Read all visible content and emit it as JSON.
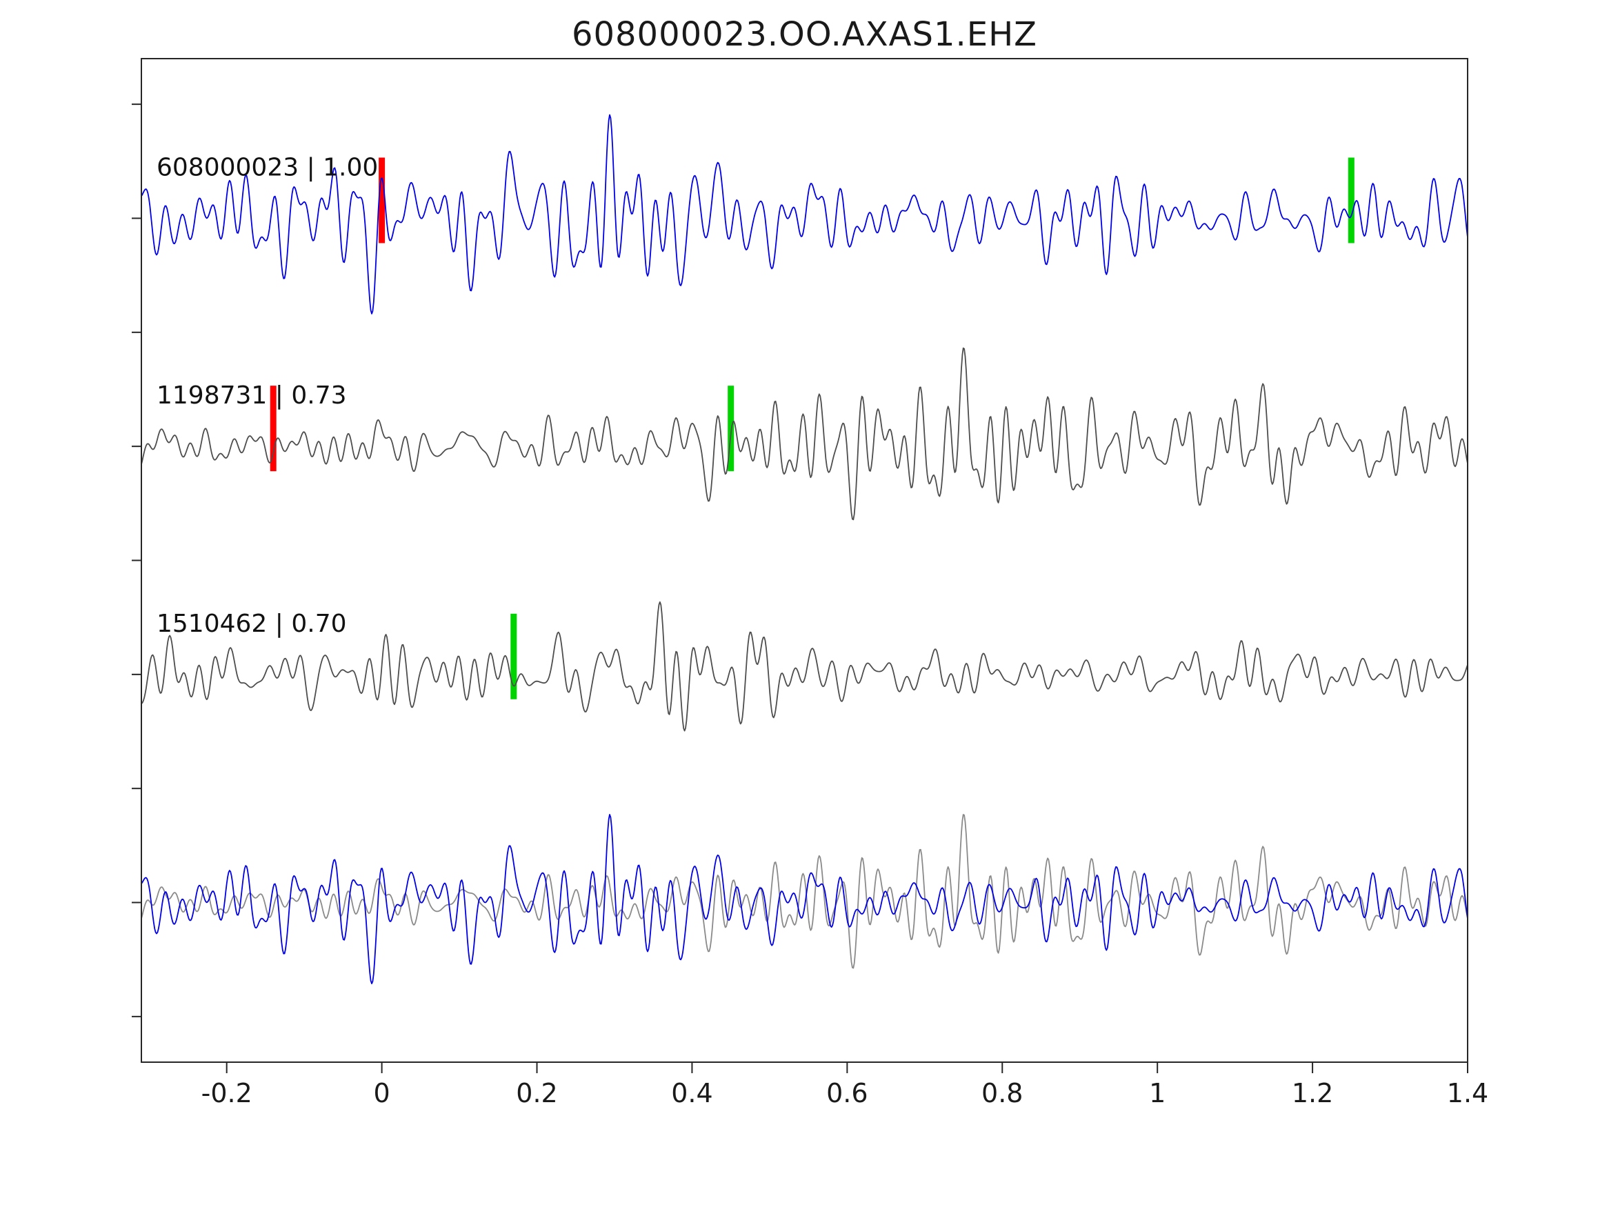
{
  "chart_data": {
    "type": "line",
    "title": "608000023.OO.AXAS1.EHZ",
    "xlabel": "",
    "ylabel": "",
    "xlim": [
      -0.31,
      1.4
    ],
    "x_ticks": [
      "-0.2",
      "0",
      "0.2",
      "0.4",
      "0.6",
      "0.8",
      "1",
      "1.2",
      "1.4"
    ],
    "x_tick_values": [
      -0.2,
      0,
      0.2,
      0.4,
      0.6,
      0.8,
      1.0,
      1.2,
      1.4
    ],
    "grid": false,
    "legend": "none",
    "note": "Seismic template-matching waveform figure: three event traces with correlation scores and pick markers, plus an overlay of template (gray) and detection (blue) at bottom. Waveform sample values are band-limited-noise approximations; exact amplitudes are not recoverable from pixels.",
    "colors": {
      "detection_blue": "#0000e6",
      "trace_gray": "#4d4d4d",
      "overlay_gray": "#8a8a8a",
      "pick_red": "#ff0000",
      "pick_green": "#00d400",
      "spine": "#262626"
    },
    "traces": [
      {
        "id": "608000023",
        "label": "608000023 | 1.00",
        "correlation": "1.00",
        "color": "#0000e6",
        "row": 0,
        "seed": 42,
        "amplitude": 1.0,
        "markers": [
          {
            "x": 0.0,
            "color": "#ff0000",
            "name": "red-pick"
          },
          {
            "x": 1.25,
            "color": "#00d400",
            "name": "green-pick"
          }
        ]
      },
      {
        "id": "1198731",
        "label": "1198731 | 0.73",
        "correlation": "0.73",
        "color": "#4d4d4d",
        "row": 1,
        "seed": 7,
        "amplitude": 0.95,
        "markers": [
          {
            "x": -0.14,
            "color": "#ff0000",
            "name": "red-pick"
          },
          {
            "x": 0.45,
            "color": "#00d400",
            "name": "green-pick"
          }
        ]
      },
      {
        "id": "1510462",
        "label": "1510462 | 0.70",
        "correlation": "0.70",
        "color": "#4d4d4d",
        "row": 2,
        "seed": 19,
        "amplitude": 0.7,
        "markers": [
          {
            "x": 0.17,
            "color": "#00d400",
            "name": "green-pick"
          }
        ]
      },
      {
        "id": "overlay",
        "label": "",
        "correlation": "",
        "color": "#8a8a8a",
        "color2": "#0000e6",
        "row": 3,
        "seed": 7,
        "seed2": 42,
        "amplitude": 0.85,
        "markers": []
      }
    ]
  }
}
